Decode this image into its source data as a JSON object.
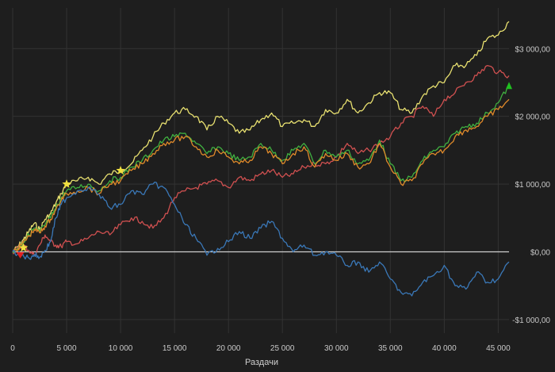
{
  "chart_data": {
    "type": "line",
    "title": "",
    "xlabel": "Раздачи",
    "ylabel": "",
    "xlim": [
      0,
      46000
    ],
    "ylim": [
      -1200,
      3600
    ],
    "grid": true,
    "legend": "none",
    "x_ticks": [
      0,
      5000,
      10000,
      15000,
      20000,
      25000,
      30000,
      35000,
      40000,
      45000
    ],
    "x_tick_labels": [
      "0",
      "5 000",
      "10 000",
      "15 000",
      "20 000",
      "25 000",
      "30 000",
      "35 000",
      "40 000",
      "45 000"
    ],
    "y_ticks": [
      -1000,
      0,
      1000,
      2000,
      3000
    ],
    "y_tick_labels": [
      "-$1 000,00",
      "$0,00",
      "$1 000,00",
      "$2 000,00",
      "$3 000,00"
    ],
    "series": [
      {
        "color": "#e8e070",
        "x": [
          0,
          500,
          1000,
          1500,
          2000,
          2500,
          3000,
          3500,
          4000,
          4500,
          5000,
          6000,
          7000,
          8000,
          9000,
          10000,
          11000,
          12000,
          13000,
          14000,
          15000,
          16000,
          17000,
          18000,
          19000,
          20000,
          21000,
          22000,
          23000,
          24000,
          25000,
          26000,
          27000,
          28000,
          29000,
          30000,
          31000,
          32000,
          33000,
          34000,
          35000,
          36000,
          37000,
          38000,
          39000,
          40000,
          41000,
          42000,
          43000,
          44000,
          45000,
          46000
        ],
        "values": [
          0,
          80,
          180,
          300,
          420,
          330,
          480,
          560,
          720,
          860,
          1000,
          1050,
          1100,
          1000,
          1150,
          1200,
          1300,
          1500,
          1700,
          1900,
          2050,
          2100,
          2000,
          1800,
          2000,
          1900,
          1750,
          1800,
          1950,
          2050,
          1850,
          1900,
          1950,
          1850,
          2100,
          2050,
          2250,
          2050,
          2200,
          2350,
          2350,
          2100,
          2050,
          2300,
          2450,
          2500,
          2750,
          2750,
          2900,
          3150,
          3200,
          3400
        ]
      },
      {
        "color": "#d05050",
        "x": [
          0,
          500,
          1000,
          1500,
          2000,
          2500,
          3000,
          3500,
          4000,
          4500,
          5000,
          6000,
          7000,
          8000,
          9000,
          10000,
          11000,
          12000,
          13000,
          14000,
          15000,
          16000,
          17000,
          18000,
          19000,
          20000,
          21000,
          22000,
          23000,
          24000,
          25000,
          26000,
          27000,
          28000,
          29000,
          30000,
          31000,
          32000,
          33000,
          34000,
          35000,
          36000,
          37000,
          38000,
          39000,
          40000,
          41000,
          42000,
          43000,
          44000,
          45000,
          46000
        ],
        "values": [
          0,
          50,
          100,
          20,
          -50,
          100,
          250,
          150,
          100,
          80,
          150,
          120,
          200,
          300,
          250,
          400,
          500,
          450,
          350,
          500,
          800,
          900,
          950,
          1000,
          1050,
          950,
          1100,
          1050,
          1150,
          1200,
          1100,
          1150,
          1250,
          1300,
          1300,
          1400,
          1600,
          1450,
          1500,
          1600,
          1700,
          1900,
          2000,
          2150,
          2000,
          2250,
          2350,
          2500,
          2600,
          2750,
          2650,
          2600
        ]
      },
      {
        "color": "#40b040",
        "x": [
          0,
          500,
          1000,
          1500,
          2000,
          2500,
          3000,
          3500,
          4000,
          4500,
          5000,
          6000,
          7000,
          8000,
          9000,
          10000,
          11000,
          12000,
          13000,
          14000,
          15000,
          16000,
          17000,
          18000,
          19000,
          20000,
          21000,
          22000,
          23000,
          24000,
          25000,
          26000,
          27000,
          28000,
          29000,
          30000,
          31000,
          32000,
          33000,
          34000,
          35000,
          36000,
          37000,
          38000,
          39000,
          40000,
          41000,
          42000,
          43000,
          44000,
          45000,
          46000
        ],
        "values": [
          0,
          60,
          150,
          250,
          350,
          300,
          400,
          500,
          650,
          800,
          900,
          950,
          1000,
          900,
          1050,
          1100,
          1250,
          1350,
          1500,
          1650,
          1700,
          1750,
          1600,
          1450,
          1550,
          1450,
          1350,
          1400,
          1600,
          1500,
          1350,
          1500,
          1600,
          1300,
          1500,
          1400,
          1500,
          1300,
          1350,
          1650,
          1300,
          1050,
          1100,
          1350,
          1500,
          1550,
          1750,
          1850,
          1900,
          2050,
          2200,
          2450
        ]
      },
      {
        "color": "#e08a2a",
        "x": [
          0,
          500,
          1000,
          1500,
          2000,
          2500,
          3000,
          3500,
          4000,
          4500,
          5000,
          6000,
          7000,
          8000,
          9000,
          10000,
          11000,
          12000,
          13000,
          14000,
          15000,
          16000,
          17000,
          18000,
          19000,
          20000,
          21000,
          22000,
          23000,
          24000,
          25000,
          26000,
          27000,
          28000,
          29000,
          30000,
          31000,
          32000,
          33000,
          34000,
          35000,
          36000,
          37000,
          38000,
          39000,
          40000,
          41000,
          42000,
          43000,
          44000,
          45000,
          46000
        ],
        "values": [
          0,
          50,
          140,
          230,
          330,
          280,
          380,
          480,
          620,
          760,
          860,
          900,
          950,
          860,
          1000,
          1050,
          1200,
          1300,
          1450,
          1600,
          1650,
          1700,
          1550,
          1400,
          1500,
          1400,
          1300,
          1350,
          1550,
          1450,
          1300,
          1450,
          1550,
          1250,
          1450,
          1350,
          1450,
          1250,
          1300,
          1600,
          1250,
          1000,
          1050,
          1300,
          1450,
          1500,
          1700,
          1800,
          1850,
          2000,
          2100,
          2250
        ]
      },
      {
        "color": "#3a78b8",
        "x": [
          0,
          500,
          1000,
          1500,
          2000,
          2500,
          3000,
          3500,
          4000,
          4500,
          5000,
          6000,
          7000,
          8000,
          9000,
          10000,
          11000,
          12000,
          13000,
          14000,
          15000,
          16000,
          17000,
          18000,
          19000,
          20000,
          21000,
          22000,
          23000,
          24000,
          25000,
          26000,
          27000,
          28000,
          29000,
          30000,
          31000,
          32000,
          33000,
          34000,
          35000,
          36000,
          37000,
          38000,
          39000,
          40000,
          41000,
          42000,
          43000,
          44000,
          45000,
          46000
        ],
        "values": [
          0,
          -30,
          -60,
          -90,
          -40,
          -80,
          20,
          150,
          500,
          700,
          800,
          900,
          950,
          850,
          650,
          700,
          900,
          850,
          1000,
          950,
          700,
          400,
          200,
          -50,
          50,
          150,
          300,
          200,
          350,
          450,
          200,
          0,
          100,
          -50,
          0,
          -50,
          -200,
          -150,
          -300,
          -150,
          -400,
          -600,
          -650,
          -450,
          -350,
          -200,
          -500,
          -550,
          -300,
          -450,
          -400,
          -150
        ]
      }
    ],
    "markers": [
      {
        "type": "star",
        "color": "#f0e040",
        "x": 1000,
        "y": 60
      },
      {
        "type": "star",
        "color": "#f0e040",
        "x": 5000,
        "y": 1000
      },
      {
        "type": "star",
        "color": "#f0e040",
        "x": 10000,
        "y": 1200
      },
      {
        "type": "triangle-down",
        "color": "#e02020",
        "x": 700,
        "y": -40
      },
      {
        "type": "triangle-up",
        "color": "#20c020",
        "x": 46000,
        "y": 2450
      }
    ]
  }
}
